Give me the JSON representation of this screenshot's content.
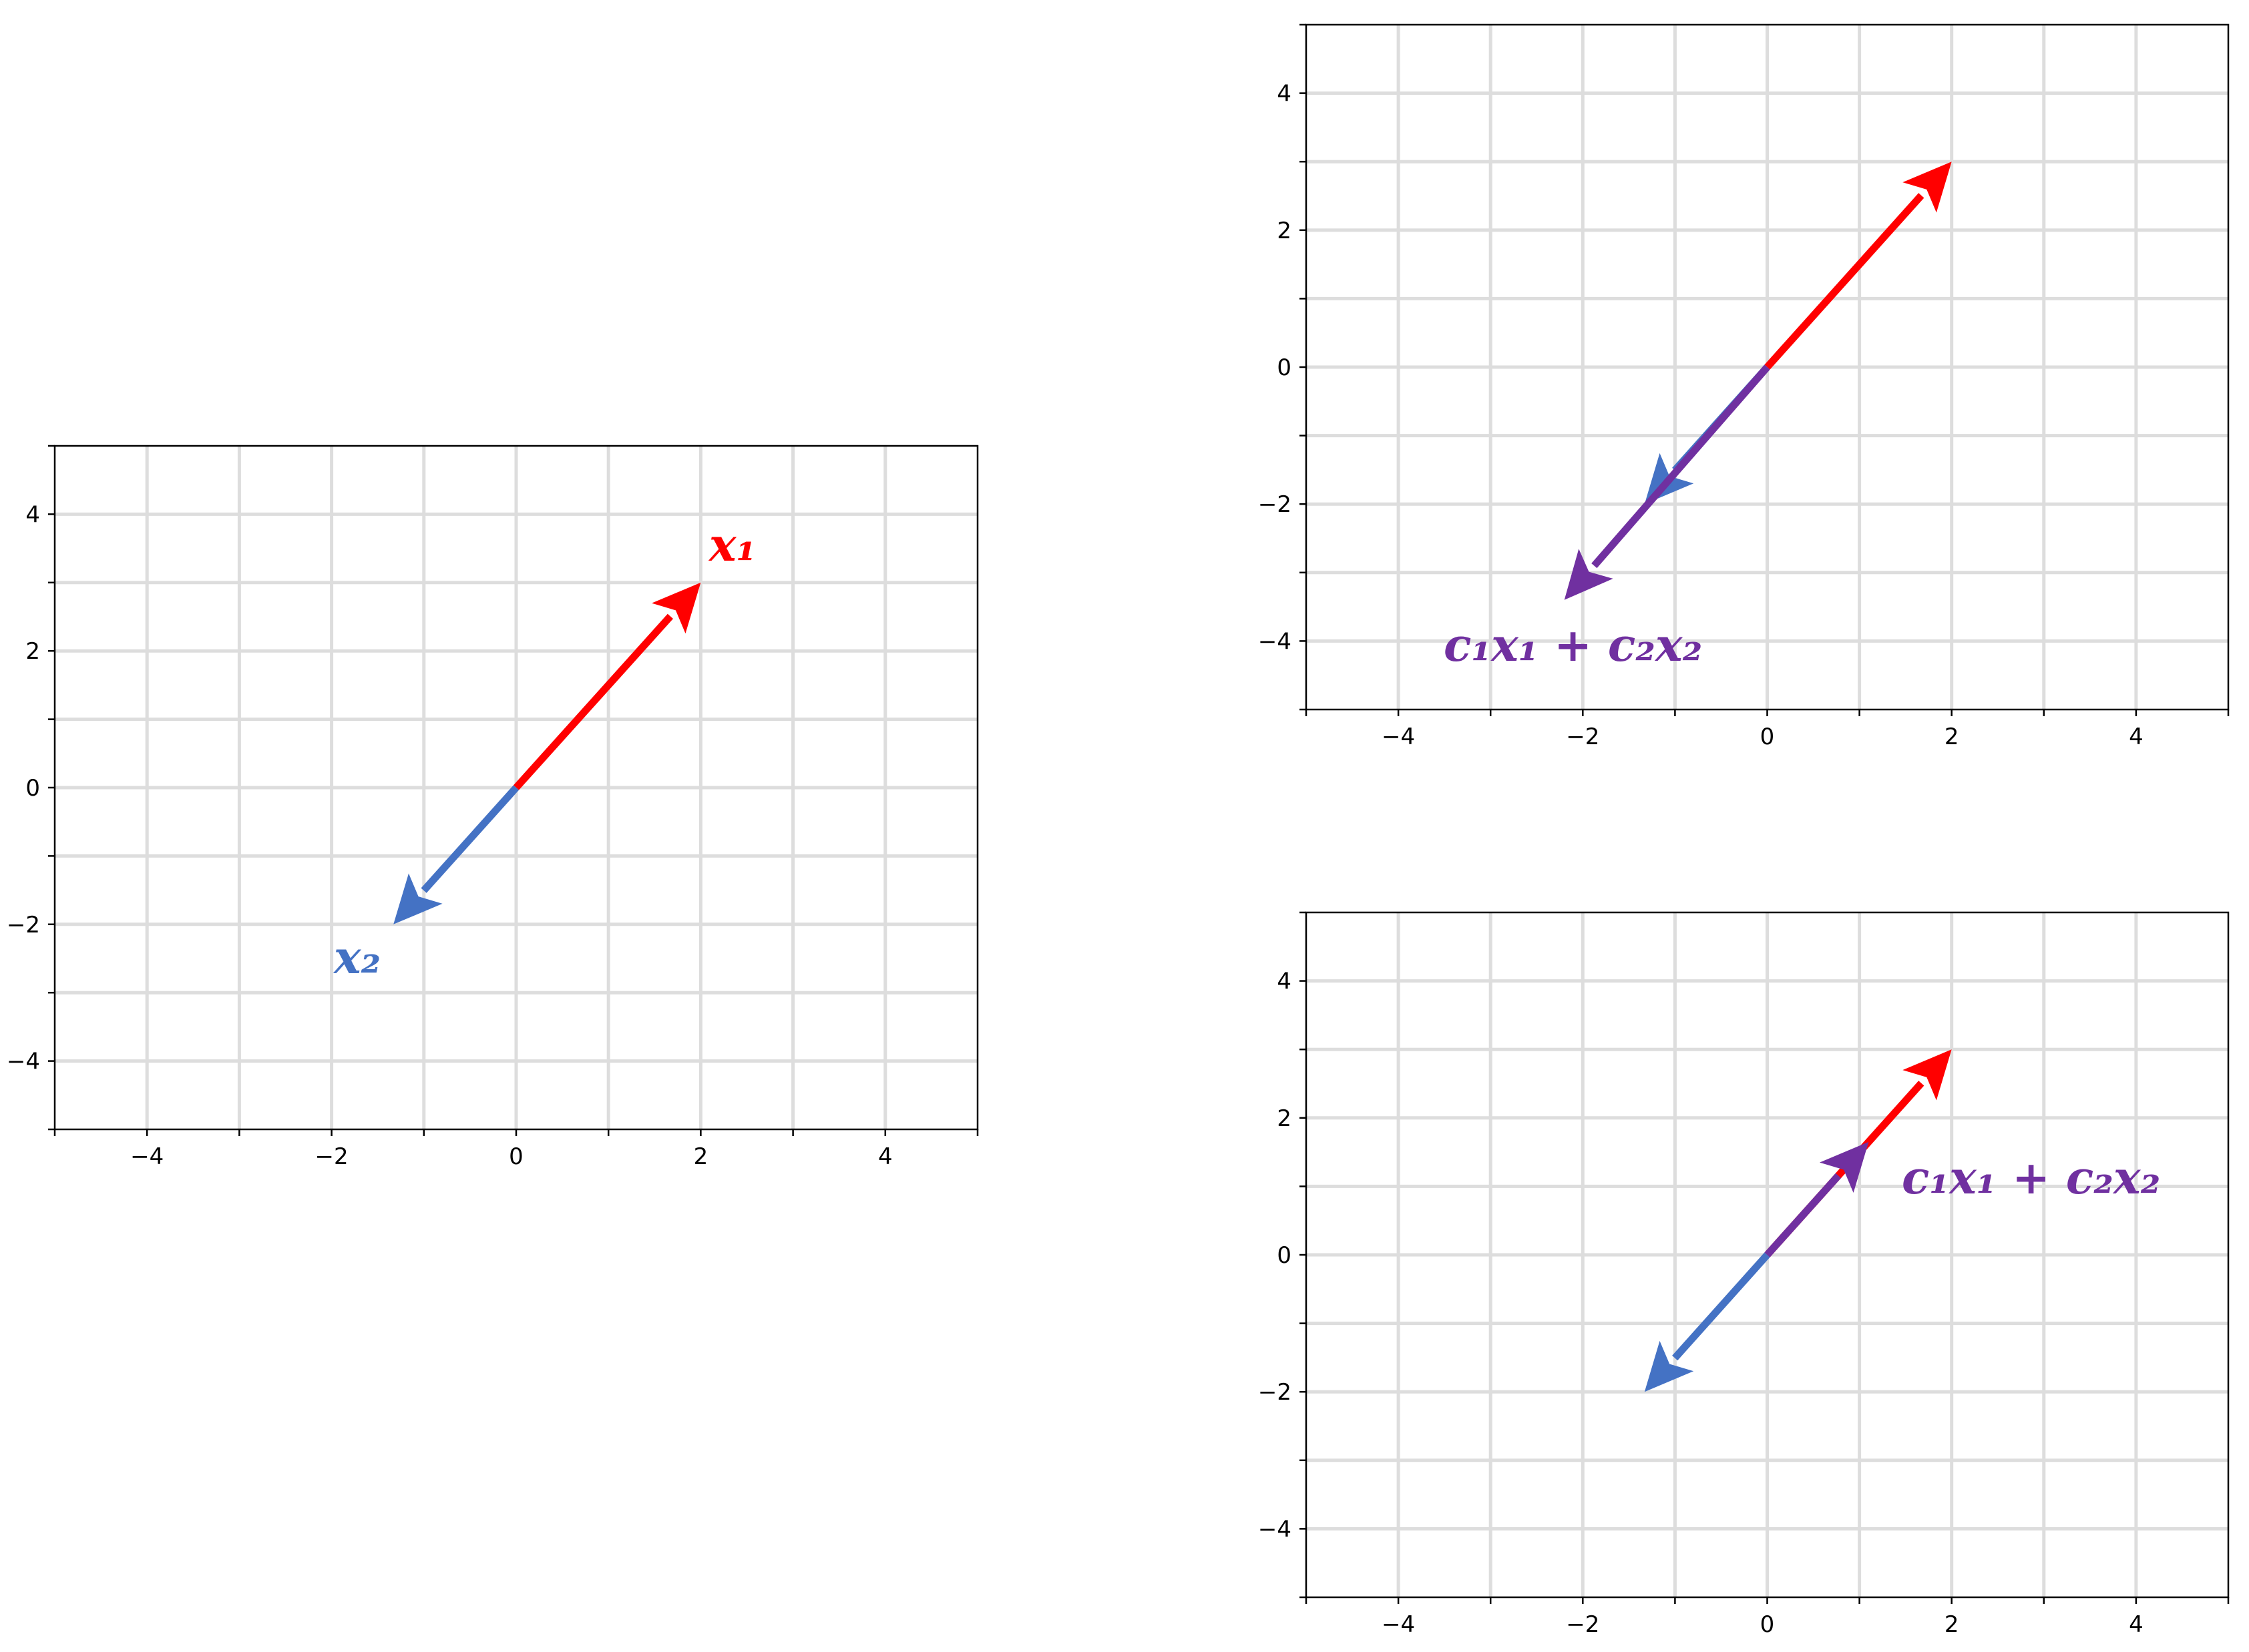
{
  "colors": {
    "x1": "#ff0000",
    "x2": "#4472c4",
    "combination": "#7030a0",
    "grid": "#dddddd",
    "axes": "#000000"
  },
  "chart_data": [
    {
      "type": "vector-plot",
      "xlim": [
        -5,
        5
      ],
      "ylim": [
        -5,
        5
      ],
      "xticks": [
        "−4",
        "−2",
        "0",
        "2",
        "4"
      ],
      "yticks": [
        "4",
        "2",
        "0",
        "−2",
        "−4"
      ],
      "grid": true,
      "vectors": [
        {
          "label": "x₁",
          "from": [
            0,
            0
          ],
          "to": [
            2,
            3
          ],
          "color_key": "x1"
        },
        {
          "label": "x₂",
          "from": [
            0,
            0
          ],
          "to": [
            -1.33,
            -2
          ],
          "color_key": "x2"
        }
      ]
    },
    {
      "type": "vector-plot",
      "xlim": [
        -5,
        5
      ],
      "ylim": [
        -5,
        5
      ],
      "xticks": [
        "−4",
        "−2",
        "0",
        "2",
        "4"
      ],
      "yticks": [
        "4",
        "2",
        "0",
        "−2",
        "−4"
      ],
      "grid": true,
      "vectors": [
        {
          "from": [
            0,
            0
          ],
          "to": [
            2,
            3
          ],
          "color_key": "x1"
        },
        {
          "from": [
            0,
            0
          ],
          "to": [
            -1.33,
            -2
          ],
          "color_key": "x2"
        },
        {
          "label": "c₁x₁ + c₂x₂",
          "from": [
            0,
            0
          ],
          "to": [
            -2.2,
            -3.4
          ],
          "color_key": "combination"
        }
      ]
    },
    {
      "type": "vector-plot",
      "xlim": [
        -5,
        5
      ],
      "ylim": [
        -5,
        5
      ],
      "xticks": [
        "−4",
        "−2",
        "0",
        "2",
        "4"
      ],
      "yticks": [
        "4",
        "2",
        "0",
        "−2",
        "−4"
      ],
      "grid": true,
      "vectors": [
        {
          "from": [
            0,
            0
          ],
          "to": [
            2,
            3
          ],
          "color_key": "x1"
        },
        {
          "from": [
            0,
            0
          ],
          "to": [
            -1.33,
            -2
          ],
          "color_key": "x2"
        },
        {
          "label": "c₁x₁ + c₂x₂",
          "from": [
            0,
            0
          ],
          "to": [
            1.1,
            1.65
          ],
          "color_key": "combination"
        }
      ]
    }
  ]
}
